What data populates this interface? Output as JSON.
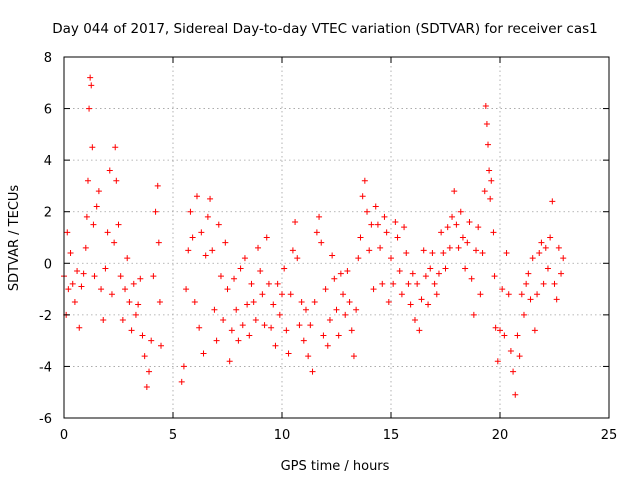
{
  "chart_data": {
    "type": "scatter",
    "title": "Day 044 of 2017, Sidereal Day-to-day VTEC variation (SDTVAR) for receiver cas1",
    "xlabel": "GPS time / hours",
    "ylabel": "SDTVAR / TECUs",
    "xlim": [
      0,
      25
    ],
    "ylim": [
      -6,
      8
    ],
    "xticks": [
      0,
      5,
      10,
      15,
      20,
      25
    ],
    "yticks": [
      -6,
      -4,
      -2,
      0,
      2,
      4,
      6,
      8
    ],
    "xtick_labels": [
      "0",
      "5",
      "10",
      "15",
      "20",
      "25"
    ],
    "ytick_labels": [
      "-6",
      "-4",
      "-2",
      "0",
      "2",
      "4",
      "6",
      "8"
    ],
    "grid": true,
    "marker": "+",
    "color": "#ff0000",
    "series": [
      {
        "name": "SDTVAR",
        "color": "#ff0000",
        "points": [
          [
            0.0,
            -0.5
          ],
          [
            0.1,
            -2.0
          ],
          [
            0.15,
            1.2
          ],
          [
            0.2,
            -1.0
          ],
          [
            0.3,
            0.4
          ],
          [
            0.4,
            -0.8
          ],
          [
            0.5,
            -1.5
          ],
          [
            0.6,
            -0.3
          ],
          [
            0.7,
            -2.5
          ],
          [
            0.8,
            -0.9
          ],
          [
            0.9,
            -0.4
          ],
          [
            1.0,
            0.6
          ],
          [
            1.05,
            1.8
          ],
          [
            1.1,
            3.2
          ],
          [
            1.15,
            6.0
          ],
          [
            1.2,
            7.2
          ],
          [
            1.25,
            6.9
          ],
          [
            1.3,
            4.5
          ],
          [
            1.35,
            1.5
          ],
          [
            1.4,
            -0.5
          ],
          [
            1.5,
            2.2
          ],
          [
            1.6,
            2.8
          ],
          [
            1.7,
            -1.0
          ],
          [
            1.8,
            -2.2
          ],
          [
            1.9,
            -0.2
          ],
          [
            2.0,
            1.2
          ],
          [
            2.1,
            3.6
          ],
          [
            2.2,
            -1.2
          ],
          [
            2.3,
            0.8
          ],
          [
            2.35,
            4.5
          ],
          [
            2.4,
            3.2
          ],
          [
            2.5,
            1.5
          ],
          [
            2.6,
            -0.5
          ],
          [
            2.7,
            -2.2
          ],
          [
            2.8,
            -1.0
          ],
          [
            2.9,
            0.2
          ],
          [
            3.0,
            -1.5
          ],
          [
            3.1,
            -2.6
          ],
          [
            3.2,
            -0.8
          ],
          [
            3.3,
            -2.0
          ],
          [
            3.4,
            -1.6
          ],
          [
            3.5,
            -0.6
          ],
          [
            3.6,
            -2.8
          ],
          [
            3.7,
            -3.6
          ],
          [
            3.8,
            -4.8
          ],
          [
            3.9,
            -4.2
          ],
          [
            4.0,
            -3.0
          ],
          [
            4.1,
            -0.5
          ],
          [
            4.2,
            2.0
          ],
          [
            4.3,
            3.0
          ],
          [
            4.35,
            0.8
          ],
          [
            4.4,
            -1.5
          ],
          [
            4.45,
            -3.2
          ],
          [
            5.4,
            -4.6
          ],
          [
            5.5,
            -4.0
          ],
          [
            5.6,
            -1.0
          ],
          [
            5.7,
            0.5
          ],
          [
            5.8,
            2.0
          ],
          [
            5.9,
            1.0
          ],
          [
            6.0,
            -1.5
          ],
          [
            6.1,
            2.6
          ],
          [
            6.2,
            -2.5
          ],
          [
            6.3,
            1.2
          ],
          [
            6.4,
            -3.5
          ],
          [
            6.5,
            0.3
          ],
          [
            6.6,
            1.8
          ],
          [
            6.7,
            2.5
          ],
          [
            6.8,
            0.5
          ],
          [
            6.9,
            -1.8
          ],
          [
            7.0,
            -3.0
          ],
          [
            7.1,
            1.5
          ],
          [
            7.2,
            -0.5
          ],
          [
            7.3,
            -2.2
          ],
          [
            7.4,
            0.8
          ],
          [
            7.5,
            -1.0
          ],
          [
            7.6,
            -3.8
          ],
          [
            7.7,
            -2.6
          ],
          [
            7.8,
            -0.6
          ],
          [
            7.9,
            -1.8
          ],
          [
            8.0,
            -3.0
          ],
          [
            8.1,
            -0.2
          ],
          [
            8.2,
            -2.4
          ],
          [
            8.3,
            0.2
          ],
          [
            8.4,
            -1.6
          ],
          [
            8.5,
            -2.8
          ],
          [
            8.6,
            -0.8
          ],
          [
            8.7,
            -1.5
          ],
          [
            8.8,
            -2.2
          ],
          [
            8.9,
            0.6
          ],
          [
            9.0,
            -0.3
          ],
          [
            9.1,
            -1.2
          ],
          [
            9.2,
            -2.4
          ],
          [
            9.3,
            1.0
          ],
          [
            9.4,
            -0.8
          ],
          [
            9.5,
            -2.5
          ],
          [
            9.6,
            -1.6
          ],
          [
            9.7,
            -3.2
          ],
          [
            9.8,
            -0.8
          ],
          [
            9.9,
            -2.0
          ],
          [
            10.0,
            -1.2
          ],
          [
            10.1,
            -0.2
          ],
          [
            10.2,
            -2.6
          ],
          [
            10.3,
            -3.5
          ],
          [
            10.4,
            -1.2
          ],
          [
            10.5,
            0.5
          ],
          [
            10.6,
            1.6
          ],
          [
            10.7,
            0.2
          ],
          [
            10.8,
            -2.4
          ],
          [
            10.9,
            -1.5
          ],
          [
            11.0,
            -3.0
          ],
          [
            11.1,
            -1.8
          ],
          [
            11.2,
            -3.6
          ],
          [
            11.3,
            -2.4
          ],
          [
            11.4,
            -4.2
          ],
          [
            11.5,
            -1.5
          ],
          [
            11.6,
            1.2
          ],
          [
            11.7,
            1.8
          ],
          [
            11.8,
            0.8
          ],
          [
            11.9,
            -2.8
          ],
          [
            12.0,
            -1.0
          ],
          [
            12.1,
            -3.2
          ],
          [
            12.2,
            -2.2
          ],
          [
            12.3,
            0.3
          ],
          [
            12.4,
            -0.6
          ],
          [
            12.5,
            -1.8
          ],
          [
            12.6,
            -2.8
          ],
          [
            12.7,
            -0.4
          ],
          [
            12.8,
            -1.2
          ],
          [
            12.9,
            -2.0
          ],
          [
            13.0,
            -0.3
          ],
          [
            13.1,
            -1.5
          ],
          [
            13.2,
            -2.6
          ],
          [
            13.3,
            -3.6
          ],
          [
            13.4,
            -1.8
          ],
          [
            13.5,
            0.2
          ],
          [
            13.6,
            1.0
          ],
          [
            13.7,
            2.6
          ],
          [
            13.8,
            3.2
          ],
          [
            13.9,
            2.0
          ],
          [
            14.0,
            0.5
          ],
          [
            14.1,
            1.5
          ],
          [
            14.2,
            -1.0
          ],
          [
            14.3,
            2.2
          ],
          [
            14.4,
            1.5
          ],
          [
            14.5,
            0.6
          ],
          [
            14.6,
            -0.8
          ],
          [
            14.7,
            1.8
          ],
          [
            14.8,
            1.2
          ],
          [
            14.9,
            -1.5
          ],
          [
            15.0,
            0.2
          ],
          [
            15.1,
            -0.8
          ],
          [
            15.2,
            1.6
          ],
          [
            15.3,
            1.0
          ],
          [
            15.4,
            -0.3
          ],
          [
            15.5,
            -1.2
          ],
          [
            15.6,
            1.4
          ],
          [
            15.7,
            0.4
          ],
          [
            15.8,
            -0.8
          ],
          [
            15.9,
            -1.6
          ],
          [
            16.0,
            -0.4
          ],
          [
            16.1,
            -2.2
          ],
          [
            16.2,
            -0.8
          ],
          [
            16.3,
            -2.6
          ],
          [
            16.4,
            -1.4
          ],
          [
            16.5,
            0.5
          ],
          [
            16.6,
            -0.5
          ],
          [
            16.7,
            -1.6
          ],
          [
            16.8,
            -0.2
          ],
          [
            16.9,
            0.4
          ],
          [
            17.0,
            -0.8
          ],
          [
            17.1,
            -1.2
          ],
          [
            17.2,
            -0.4
          ],
          [
            17.3,
            1.2
          ],
          [
            17.4,
            0.4
          ],
          [
            17.5,
            -0.2
          ],
          [
            17.6,
            1.4
          ],
          [
            17.7,
            0.6
          ],
          [
            17.8,
            1.8
          ],
          [
            17.9,
            2.8
          ],
          [
            18.0,
            1.5
          ],
          [
            18.1,
            0.6
          ],
          [
            18.2,
            2.0
          ],
          [
            18.3,
            1.0
          ],
          [
            18.4,
            -0.2
          ],
          [
            18.5,
            0.8
          ],
          [
            18.6,
            1.6
          ],
          [
            18.7,
            -0.6
          ],
          [
            18.8,
            -2.0
          ],
          [
            18.9,
            0.5
          ],
          [
            19.0,
            1.4
          ],
          [
            19.1,
            -1.2
          ],
          [
            19.2,
            0.4
          ],
          [
            19.3,
            2.8
          ],
          [
            19.35,
            6.1
          ],
          [
            19.4,
            5.4
          ],
          [
            19.45,
            4.6
          ],
          [
            19.5,
            3.6
          ],
          [
            19.55,
            2.5
          ],
          [
            19.6,
            3.2
          ],
          [
            19.7,
            1.2
          ],
          [
            19.75,
            -0.5
          ],
          [
            19.8,
            -2.5
          ],
          [
            19.9,
            -3.8
          ],
          [
            20.0,
            -2.6
          ],
          [
            20.1,
            -1.0
          ],
          [
            20.2,
            -2.8
          ],
          [
            20.3,
            0.4
          ],
          [
            20.4,
            -1.2
          ],
          [
            20.5,
            -3.4
          ],
          [
            20.6,
            -4.2
          ],
          [
            20.7,
            -5.1
          ],
          [
            20.8,
            -2.8
          ],
          [
            20.9,
            -3.6
          ],
          [
            21.0,
            -1.2
          ],
          [
            21.1,
            -2.0
          ],
          [
            21.2,
            -0.8
          ],
          [
            21.3,
            -0.4
          ],
          [
            21.4,
            -1.4
          ],
          [
            21.5,
            0.2
          ],
          [
            21.6,
            -2.6
          ],
          [
            21.7,
            -1.2
          ],
          [
            21.8,
            0.4
          ],
          [
            21.9,
            0.8
          ],
          [
            22.0,
            -0.8
          ],
          [
            22.1,
            0.6
          ],
          [
            22.2,
            -0.2
          ],
          [
            22.3,
            1.0
          ],
          [
            22.4,
            2.4
          ],
          [
            22.5,
            -0.8
          ],
          [
            22.6,
            -1.4
          ],
          [
            22.7,
            0.6
          ],
          [
            22.8,
            -0.4
          ],
          [
            22.9,
            0.2
          ]
        ]
      }
    ]
  }
}
